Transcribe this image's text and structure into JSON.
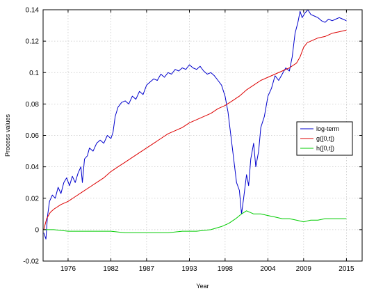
{
  "chart_data": {
    "type": "line",
    "xlabel": "Year",
    "ylabel": "Process values",
    "xlim": [
      1972.5,
      2017.2
    ],
    "ylim": [
      -0.02,
      0.14
    ],
    "xticks": [
      1976,
      1982,
      1987,
      1993,
      1998,
      2004,
      2009,
      2015
    ],
    "yticks": [
      -0.02,
      0,
      0.02,
      0.04,
      0.06,
      0.08,
      0.1,
      0.12,
      0.14
    ],
    "ytick_labels": [
      "-0.02",
      "0",
      "0.02",
      "0.04",
      "0.06",
      "0.08",
      "0.1",
      "0.12",
      "0.14"
    ],
    "grid": true,
    "legend_position": "right",
    "series": [
      {
        "name": "log-term",
        "color": "#0000cc",
        "points": [
          [
            1972.6,
            -0.002
          ],
          [
            1972.9,
            -0.006
          ],
          [
            1973.1,
            0.008
          ],
          [
            1973.4,
            0.018
          ],
          [
            1973.8,
            0.022
          ],
          [
            1974.2,
            0.02
          ],
          [
            1974.6,
            0.027
          ],
          [
            1975.0,
            0.023
          ],
          [
            1975.4,
            0.03
          ],
          [
            1975.8,
            0.033
          ],
          [
            1976.2,
            0.028
          ],
          [
            1976.6,
            0.034
          ],
          [
            1977.0,
            0.03
          ],
          [
            1977.4,
            0.036
          ],
          [
            1977.8,
            0.04
          ],
          [
            1978.0,
            0.03
          ],
          [
            1978.3,
            0.045
          ],
          [
            1978.7,
            0.047
          ],
          [
            1979.0,
            0.052
          ],
          [
            1979.5,
            0.05
          ],
          [
            1980.0,
            0.055
          ],
          [
            1980.5,
            0.057
          ],
          [
            1981.0,
            0.055
          ],
          [
            1981.5,
            0.06
          ],
          [
            1982.0,
            0.058
          ],
          [
            1982.3,
            0.062
          ],
          [
            1982.6,
            0.072
          ],
          [
            1983.0,
            0.078
          ],
          [
            1983.5,
            0.081
          ],
          [
            1984.0,
            0.082
          ],
          [
            1984.5,
            0.08
          ],
          [
            1985.0,
            0.085
          ],
          [
            1985.5,
            0.083
          ],
          [
            1986.0,
            0.088
          ],
          [
            1986.5,
            0.086
          ],
          [
            1987.0,
            0.092
          ],
          [
            1987.5,
            0.094
          ],
          [
            1988.0,
            0.096
          ],
          [
            1988.5,
            0.095
          ],
          [
            1989.0,
            0.099
          ],
          [
            1989.5,
            0.097
          ],
          [
            1990.0,
            0.1
          ],
          [
            1990.5,
            0.099
          ],
          [
            1991.0,
            0.102
          ],
          [
            1991.5,
            0.101
          ],
          [
            1992.0,
            0.103
          ],
          [
            1992.5,
            0.102
          ],
          [
            1993.0,
            0.105
          ],
          [
            1993.5,
            0.103
          ],
          [
            1994.0,
            0.102
          ],
          [
            1994.5,
            0.104
          ],
          [
            1995.0,
            0.101
          ],
          [
            1995.5,
            0.099
          ],
          [
            1996.0,
            0.1
          ],
          [
            1996.5,
            0.098
          ],
          [
            1997.0,
            0.095
          ],
          [
            1997.5,
            0.092
          ],
          [
            1998.0,
            0.085
          ],
          [
            1998.4,
            0.075
          ],
          [
            1998.8,
            0.06
          ],
          [
            1999.2,
            0.045
          ],
          [
            1999.6,
            0.03
          ],
          [
            2000.0,
            0.025
          ],
          [
            2000.3,
            0.01
          ],
          [
            2000.6,
            0.02
          ],
          [
            2001.0,
            0.035
          ],
          [
            2001.3,
            0.028
          ],
          [
            2001.6,
            0.045
          ],
          [
            2002.0,
            0.055
          ],
          [
            2002.3,
            0.04
          ],
          [
            2002.7,
            0.05
          ],
          [
            2003.0,
            0.065
          ],
          [
            2003.5,
            0.072
          ],
          [
            2004.0,
            0.085
          ],
          [
            2004.5,
            0.09
          ],
          [
            2005.0,
            0.098
          ],
          [
            2005.5,
            0.095
          ],
          [
            2006.0,
            0.099
          ],
          [
            2006.5,
            0.103
          ],
          [
            2007.0,
            0.101
          ],
          [
            2007.4,
            0.11
          ],
          [
            2007.8,
            0.125
          ],
          [
            2008.2,
            0.132
          ],
          [
            2008.5,
            0.139
          ],
          [
            2008.8,
            0.135
          ],
          [
            2009.2,
            0.138
          ],
          [
            2009.6,
            0.14
          ],
          [
            2010.0,
            0.137
          ],
          [
            2010.5,
            0.136
          ],
          [
            2011.0,
            0.135
          ],
          [
            2011.5,
            0.133
          ],
          [
            2012.0,
            0.132
          ],
          [
            2012.5,
            0.134
          ],
          [
            2013.0,
            0.133
          ],
          [
            2013.5,
            0.134
          ],
          [
            2014.0,
            0.135
          ],
          [
            2014.5,
            0.134
          ],
          [
            2015.0,
            0.133
          ]
        ]
      },
      {
        "name": "g([0,t])",
        "color": "#dd0000",
        "points": [
          [
            1972.6,
            0.0
          ],
          [
            1973.0,
            0.007
          ],
          [
            1973.5,
            0.011
          ],
          [
            1974.0,
            0.013
          ],
          [
            1975.0,
            0.016
          ],
          [
            1976.0,
            0.018
          ],
          [
            1977.0,
            0.021
          ],
          [
            1978.0,
            0.024
          ],
          [
            1979.0,
            0.027
          ],
          [
            1980.0,
            0.03
          ],
          [
            1981.0,
            0.033
          ],
          [
            1982.0,
            0.037
          ],
          [
            1983.0,
            0.04
          ],
          [
            1984.0,
            0.043
          ],
          [
            1985.0,
            0.046
          ],
          [
            1986.0,
            0.049
          ],
          [
            1987.0,
            0.052
          ],
          [
            1988.0,
            0.055
          ],
          [
            1989.0,
            0.058
          ],
          [
            1990.0,
            0.061
          ],
          [
            1991.0,
            0.063
          ],
          [
            1992.0,
            0.065
          ],
          [
            1993.0,
            0.068
          ],
          [
            1994.0,
            0.07
          ],
          [
            1995.0,
            0.072
          ],
          [
            1996.0,
            0.074
          ],
          [
            1997.0,
            0.077
          ],
          [
            1998.0,
            0.079
          ],
          [
            1999.0,
            0.082
          ],
          [
            2000.0,
            0.085
          ],
          [
            2001.0,
            0.089
          ],
          [
            2002.0,
            0.092
          ],
          [
            2003.0,
            0.095
          ],
          [
            2004.0,
            0.097
          ],
          [
            2005.0,
            0.099
          ],
          [
            2006.0,
            0.101
          ],
          [
            2007.0,
            0.103
          ],
          [
            2008.0,
            0.106
          ],
          [
            2008.5,
            0.11
          ],
          [
            2009.0,
            0.116
          ],
          [
            2009.5,
            0.119
          ],
          [
            2010.0,
            0.12
          ],
          [
            2011.0,
            0.122
          ],
          [
            2012.0,
            0.123
          ],
          [
            2013.0,
            0.125
          ],
          [
            2014.0,
            0.126
          ],
          [
            2015.0,
            0.127
          ]
        ]
      },
      {
        "name": "h([0,t])",
        "color": "#00cc00",
        "points": [
          [
            1972.6,
            0.0
          ],
          [
            1974.0,
            0.0
          ],
          [
            1976.0,
            -0.001
          ],
          [
            1978.0,
            -0.001
          ],
          [
            1980.0,
            -0.001
          ],
          [
            1982.0,
            -0.001
          ],
          [
            1984.0,
            -0.002
          ],
          [
            1986.0,
            -0.002
          ],
          [
            1988.0,
            -0.002
          ],
          [
            1990.0,
            -0.002
          ],
          [
            1992.0,
            -0.001
          ],
          [
            1994.0,
            -0.001
          ],
          [
            1996.0,
            0.0
          ],
          [
            1997.5,
            0.002
          ],
          [
            1998.5,
            0.004
          ],
          [
            1999.5,
            0.007
          ],
          [
            2000.3,
            0.01
          ],
          [
            2001.0,
            0.012
          ],
          [
            2002.0,
            0.01
          ],
          [
            2003.0,
            0.01
          ],
          [
            2004.0,
            0.009
          ],
          [
            2005.0,
            0.008
          ],
          [
            2006.0,
            0.007
          ],
          [
            2007.0,
            0.007
          ],
          [
            2008.0,
            0.006
          ],
          [
            2009.0,
            0.005
          ],
          [
            2010.0,
            0.006
          ],
          [
            2011.0,
            0.006
          ],
          [
            2012.0,
            0.007
          ],
          [
            2013.0,
            0.007
          ],
          [
            2014.0,
            0.007
          ],
          [
            2015.0,
            0.007
          ]
        ]
      }
    ]
  }
}
